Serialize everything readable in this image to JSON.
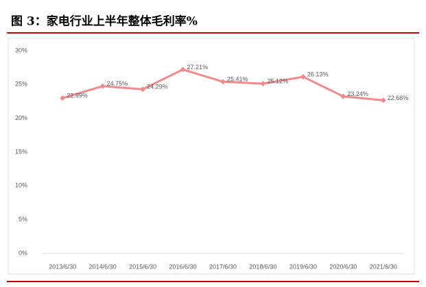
{
  "chart_data": {
    "type": "line",
    "title": "图 3：家电行业上半年整体毛利率%",
    "categories": [
      "2013/6/30",
      "2014/6/30",
      "2015/6/30",
      "2016/6/30",
      "2017/6/30",
      "2018/6/30",
      "2019/6/30",
      "2020/6/30",
      "2021/6/30"
    ],
    "series": [
      {
        "name": "整体毛利率",
        "color": "#ef8b8b",
        "values": [
          22.99,
          24.75,
          24.29,
          27.21,
          25.41,
          25.12,
          26.13,
          23.24,
          22.66
        ],
        "value_labels": [
          "22.99%",
          "24.75%",
          "24.29%",
          "27.21%",
          "25.41%",
          "25.12%",
          "26.13%",
          "23.24%",
          "22.66%"
        ]
      }
    ],
    "ylim": [
      0,
      30
    ],
    "yticks": [
      {
        "value": 0,
        "label": "0%"
      },
      {
        "value": 5,
        "label": "5%"
      },
      {
        "value": 10,
        "label": "10%"
      },
      {
        "value": 15,
        "label": "15%"
      },
      {
        "value": 20,
        "label": "20%"
      },
      {
        "value": 25,
        "label": "25%"
      },
      {
        "value": 30,
        "label": "30%"
      }
    ],
    "grid": false
  }
}
